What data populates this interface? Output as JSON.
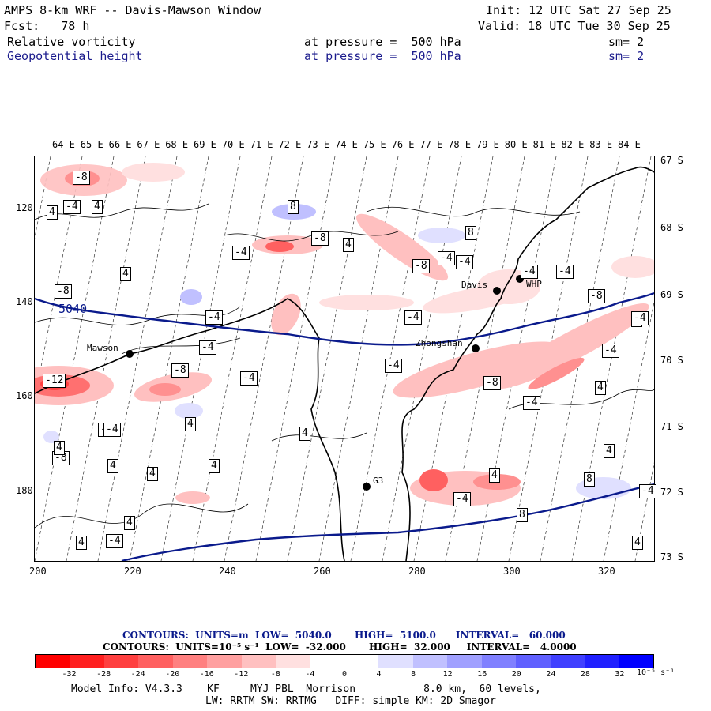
{
  "header": {
    "title": "AMPS 8-km WRF -- Davis-Mawson Window",
    "init": "Init: 12 UTC Sat 27 Sep 25",
    "fcst": "Fcst:   78 h",
    "valid": "Valid: 18 UTC Tue 30 Sep 25",
    "field1_name": "Relative vorticity",
    "field1_level": "at pressure =  500 hPa",
    "field1_sm": "sm= 2",
    "field2_name": "Geopotential height",
    "field2_level": "at pressure =  500 hPa",
    "field2_sm": "sm= 2"
  },
  "map": {
    "longitude_labels": [
      "64 E",
      "65 E",
      "66 E",
      "67 E",
      "68 E",
      "69 E",
      "70 E",
      "71 E",
      "72 E",
      "73 E",
      "74 E",
      "75 E",
      "76 E",
      "77 E",
      "78 E",
      "79 E",
      "80 E",
      "81 E",
      "82 E",
      "83 E",
      "84 E"
    ],
    "latitude_labels": [
      "67 S",
      "68 S",
      "69 S",
      "70 S",
      "71 S",
      "72 S",
      "73 S"
    ],
    "y_ticks": [
      "120",
      "140",
      "160",
      "180"
    ],
    "x_ticks": [
      "200",
      "220",
      "240",
      "260",
      "280",
      "300",
      "320"
    ],
    "height_label": "5040",
    "stations": [
      "Mawson",
      "Davis",
      "WHP",
      "Zhongshan",
      "G3"
    ],
    "box_labels": [
      "-8",
      "4",
      "-4",
      "4",
      "8",
      "-8",
      "-4",
      "4",
      "8",
      "-8",
      "-4",
      "4",
      "-8",
      "-4",
      "-4",
      "-4",
      "-4",
      "-4",
      "-4",
      "-4",
      "-12",
      "-8",
      "-4",
      "-8",
      "-8",
      "4",
      "4",
      "-4",
      "4",
      "-4",
      "-8",
      "-4",
      "4",
      "4",
      "4",
      "4",
      "-4",
      "4",
      "4",
      "4",
      "8",
      "4",
      "8",
      "-4",
      "4",
      "-4",
      "4",
      "-4",
      "-4"
    ]
  },
  "contour_info": {
    "line1": "CONTOURS:  UNITS=m  LOW=  5040.0       HIGH=  5100.0      INTERVAL=   60.000",
    "line2": "CONTOURS:  UNITS=10⁻⁵ s⁻¹  LOW=  -32.000       HIGH=  32.000     INTERVAL=   4.0000"
  },
  "colorbar": {
    "labels": [
      "-32",
      "-28",
      "-24",
      "-20",
      "-16",
      "-12",
      "-8",
      "-4",
      "0",
      "4",
      "8",
      "12",
      "16",
      "20",
      "24",
      "28",
      "32"
    ],
    "unit": "10⁻⁵ s⁻¹",
    "colors": [
      "#ff0000",
      "#ff2020",
      "#ff4040",
      "#ff6060",
      "#ff8080",
      "#ffa0a0",
      "#ffc0c0",
      "#ffe0e0",
      "#ffffff",
      "#ffffff",
      "#e0e0ff",
      "#c0c0ff",
      "#a0a0ff",
      "#8080ff",
      "#6060ff",
      "#4040ff",
      "#2020ff",
      "#0000ff"
    ]
  },
  "footer": {
    "line1": "Model Info: V4.3.3    KF     MYJ PBL  Morrison           8.0 km,  60 levels,",
    "line2": "LW: RRTM SW: RRTMG   DIFF: simple KM: 2D Smagor"
  }
}
